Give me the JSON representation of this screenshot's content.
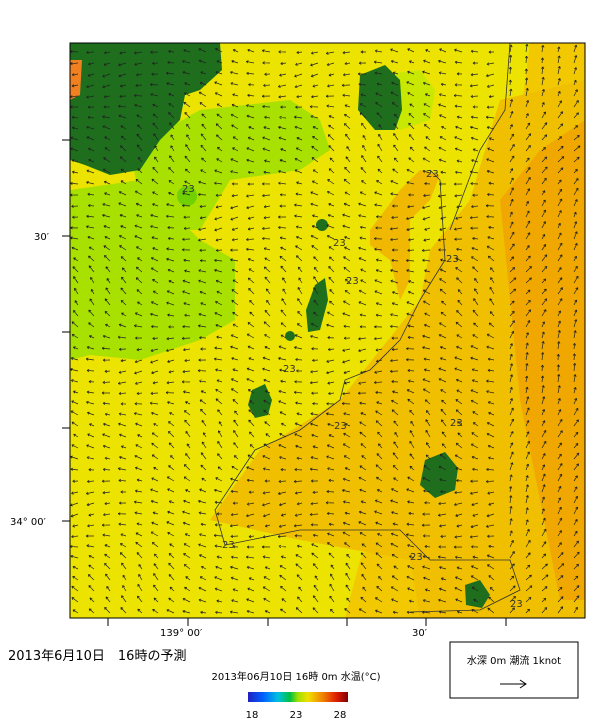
{
  "map": {
    "heading": "2013年6月10日　16時の予測",
    "lat_labels": [
      "30′",
      "34° 00′"
    ],
    "lon_labels": [
      "139° 00′",
      "30′"
    ],
    "contour_label": "23",
    "colorbar": {
      "title": "2013年06月10日 16時 0m 水温(°C)",
      "ticks": [
        18,
        23,
        28
      ]
    },
    "legend": "水深 0m 潮流 1knot"
  }
}
